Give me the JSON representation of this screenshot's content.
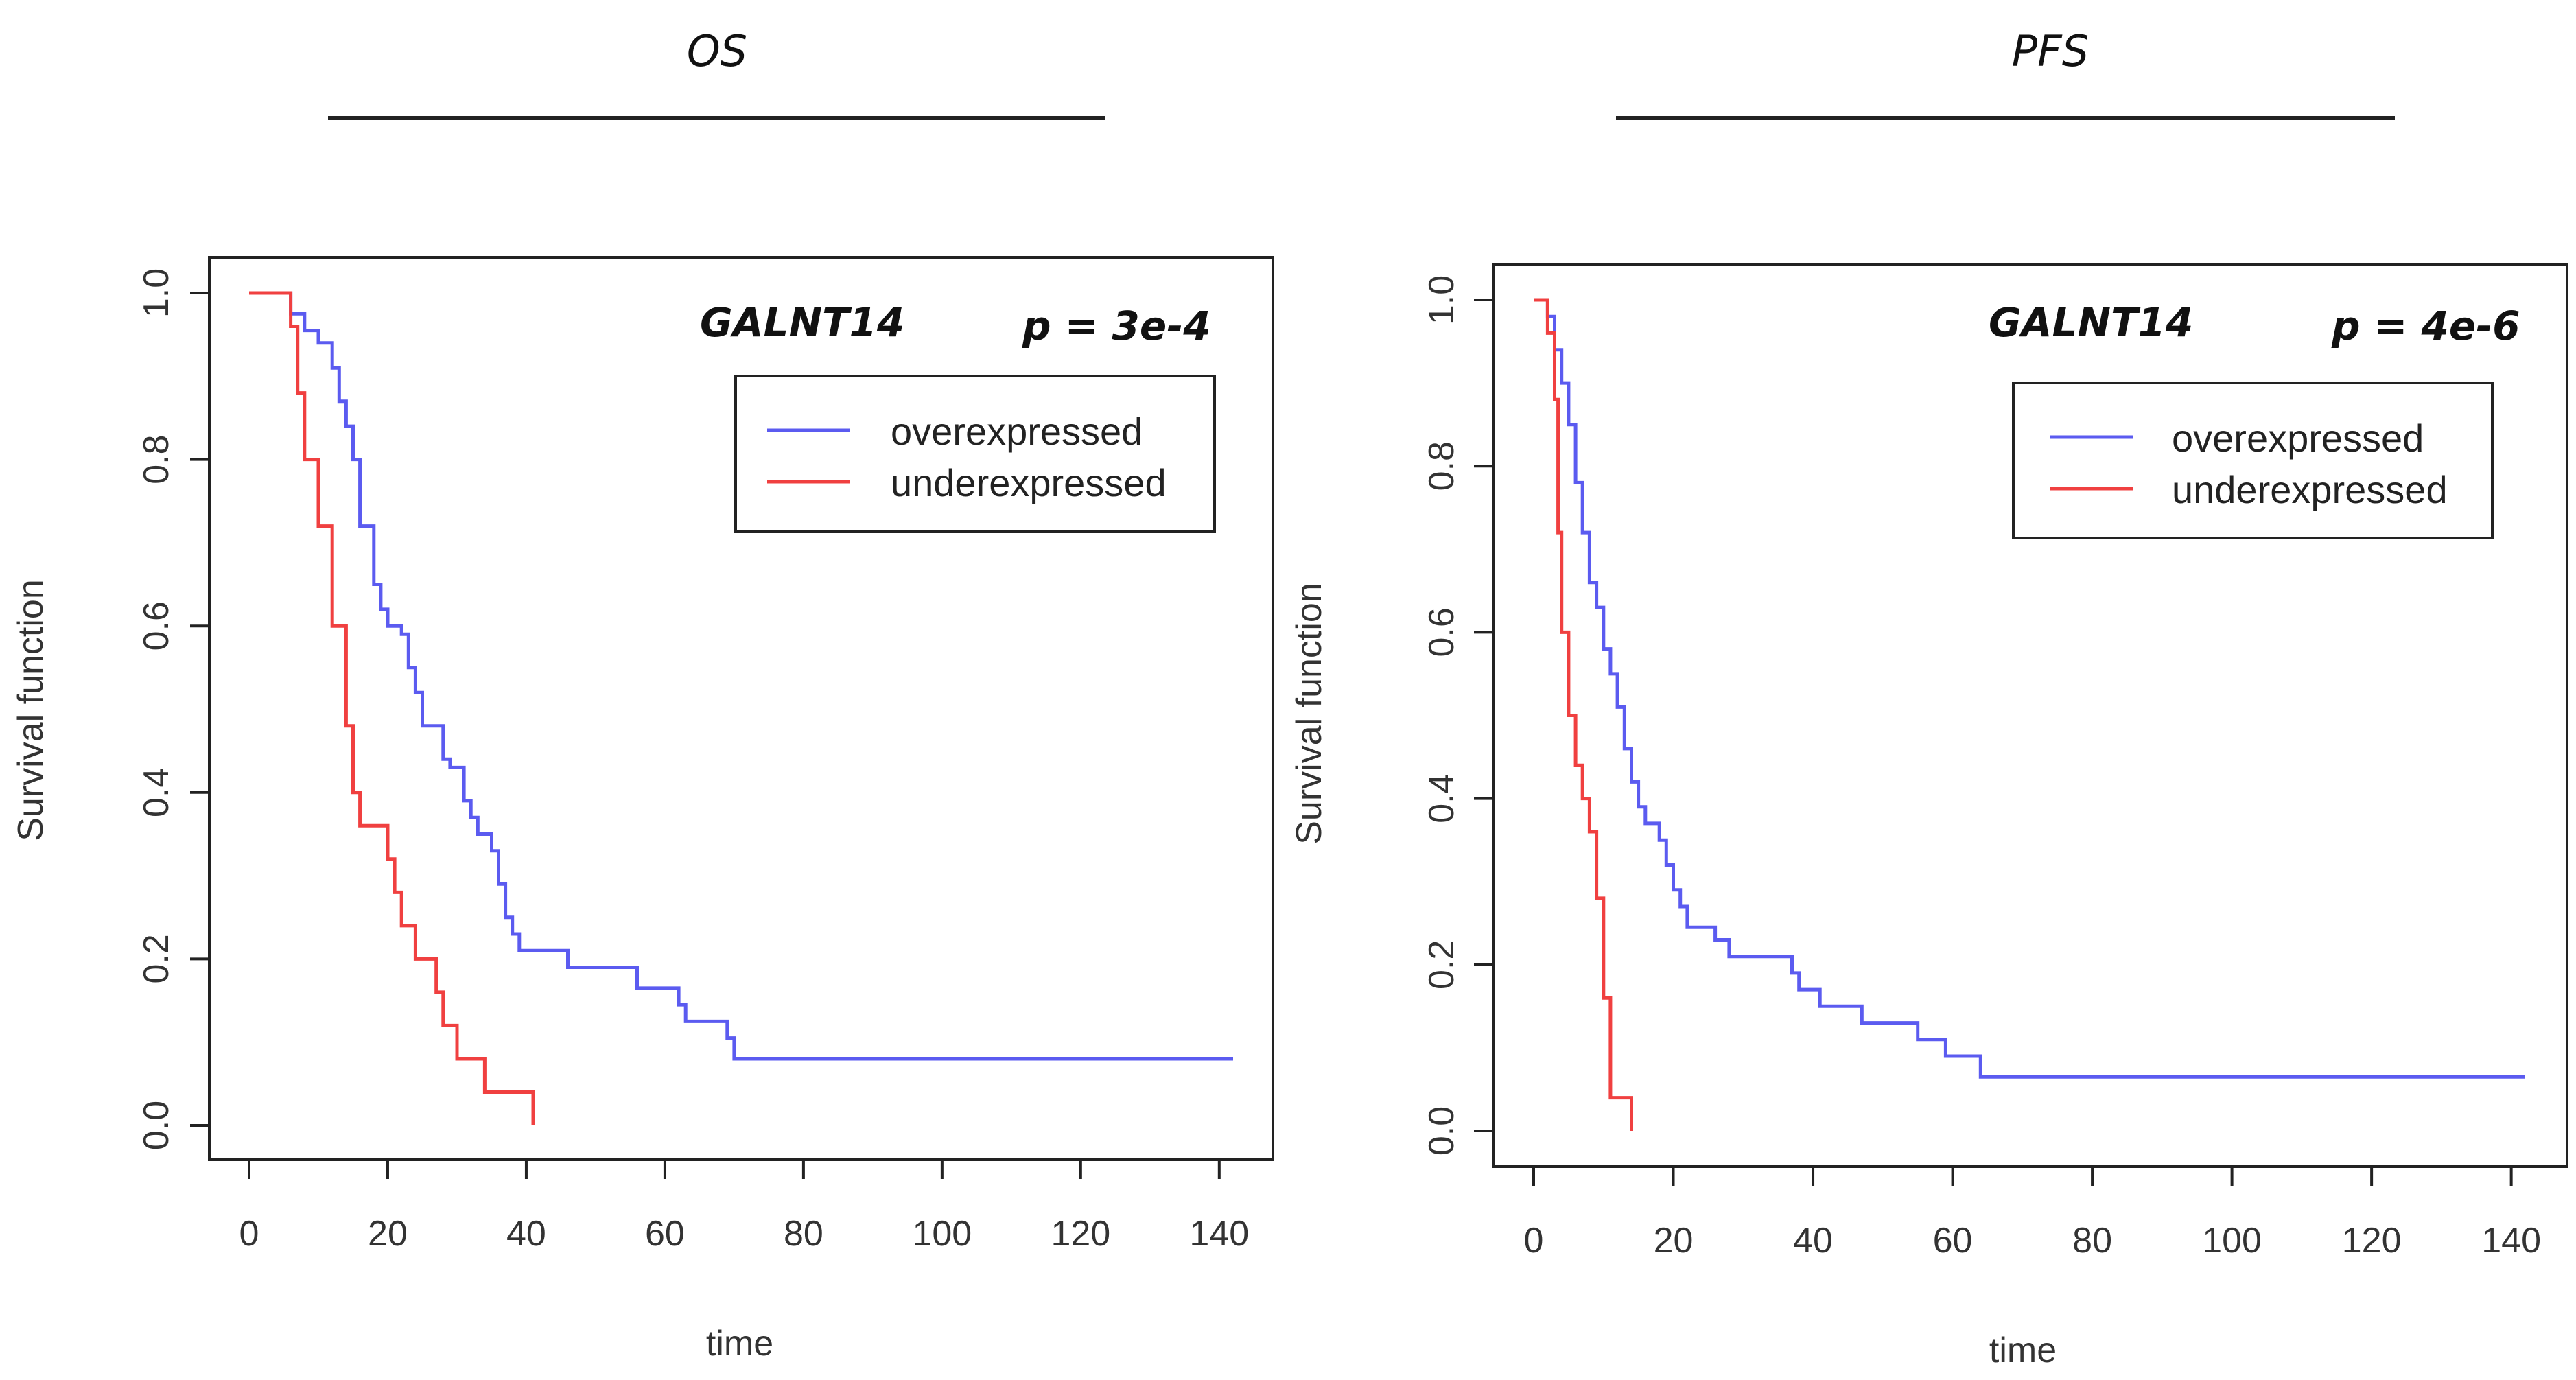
{
  "chart_data": [
    {
      "type": "line",
      "header": "OS",
      "gene": "GALNT14",
      "p_value": "p = 3e-4",
      "xlabel": "time",
      "ylabel": "Survival function",
      "xlim": [
        0,
        142
      ],
      "ylim": [
        0,
        1
      ],
      "xticks": [
        "0",
        "20",
        "40",
        "60",
        "80",
        "100",
        "120",
        "140"
      ],
      "yticks": [
        "0.0",
        "0.2",
        "0.4",
        "0.6",
        "0.8",
        "1.0"
      ],
      "legend": [
        "overexpressed",
        "underexpressed"
      ],
      "series": [
        {
          "name": "overexpressed",
          "color": "#5b5bf0",
          "points": [
            [
              0,
              1.0
            ],
            [
              6,
              1.0
            ],
            [
              6,
              0.975
            ],
            [
              8,
              0.975
            ],
            [
              8,
              0.955
            ],
            [
              10,
              0.955
            ],
            [
              10,
              0.94
            ],
            [
              12,
              0.94
            ],
            [
              12,
              0.91
            ],
            [
              13,
              0.91
            ],
            [
              13,
              0.87
            ],
            [
              14,
              0.87
            ],
            [
              14,
              0.84
            ],
            [
              15,
              0.84
            ],
            [
              15,
              0.8
            ],
            [
              16,
              0.8
            ],
            [
              16,
              0.72
            ],
            [
              18,
              0.72
            ],
            [
              18,
              0.65
            ],
            [
              19,
              0.65
            ],
            [
              19,
              0.62
            ],
            [
              20,
              0.62
            ],
            [
              20,
              0.6
            ],
            [
              22,
              0.6
            ],
            [
              22,
              0.59
            ],
            [
              23,
              0.59
            ],
            [
              23,
              0.55
            ],
            [
              24,
              0.55
            ],
            [
              24,
              0.52
            ],
            [
              25,
              0.52
            ],
            [
              25,
              0.48
            ],
            [
              28,
              0.48
            ],
            [
              28,
              0.44
            ],
            [
              29,
              0.44
            ],
            [
              29,
              0.43
            ],
            [
              31,
              0.43
            ],
            [
              31,
              0.39
            ],
            [
              32,
              0.39
            ],
            [
              32,
              0.37
            ],
            [
              33,
              0.37
            ],
            [
              33,
              0.35
            ],
            [
              35,
              0.35
            ],
            [
              35,
              0.33
            ],
            [
              36,
              0.33
            ],
            [
              36,
              0.29
            ],
            [
              37,
              0.29
            ],
            [
              37,
              0.25
            ],
            [
              38,
              0.25
            ],
            [
              38,
              0.23
            ],
            [
              39,
              0.23
            ],
            [
              39,
              0.21
            ],
            [
              46,
              0.21
            ],
            [
              46,
              0.19
            ],
            [
              56,
              0.19
            ],
            [
              56,
              0.165
            ],
            [
              62,
              0.165
            ],
            [
              62,
              0.145
            ],
            [
              63,
              0.145
            ],
            [
              63,
              0.125
            ],
            [
              69,
              0.125
            ],
            [
              69,
              0.105
            ],
            [
              70,
              0.105
            ],
            [
              70,
              0.08
            ],
            [
              142,
              0.08
            ]
          ]
        },
        {
          "name": "underexpressed",
          "color": "#f04040",
          "points": [
            [
              0,
              1.0
            ],
            [
              6,
              1.0
            ],
            [
              6,
              0.96
            ],
            [
              7,
              0.96
            ],
            [
              7,
              0.88
            ],
            [
              8,
              0.88
            ],
            [
              8,
              0.8
            ],
            [
              10,
              0.8
            ],
            [
              10,
              0.72
            ],
            [
              12,
              0.72
            ],
            [
              12,
              0.6
            ],
            [
              14,
              0.6
            ],
            [
              14,
              0.48
            ],
            [
              15,
              0.48
            ],
            [
              15,
              0.4
            ],
            [
              16,
              0.4
            ],
            [
              16,
              0.36
            ],
            [
              20,
              0.36
            ],
            [
              20,
              0.32
            ],
            [
              21,
              0.32
            ],
            [
              21,
              0.28
            ],
            [
              22,
              0.28
            ],
            [
              22,
              0.24
            ],
            [
              24,
              0.24
            ],
            [
              24,
              0.2
            ],
            [
              27,
              0.2
            ],
            [
              27,
              0.16
            ],
            [
              28,
              0.16
            ],
            [
              28,
              0.12
            ],
            [
              30,
              0.12
            ],
            [
              30,
              0.08
            ],
            [
              34,
              0.08
            ],
            [
              34,
              0.04
            ],
            [
              41,
              0.04
            ],
            [
              41,
              0.0
            ]
          ]
        }
      ]
    },
    {
      "type": "line",
      "header": "PFS",
      "gene": "GALNT14",
      "p_value": "p = 4e-6",
      "xlabel": "time",
      "ylabel": "Survival function",
      "xlim": [
        0,
        142
      ],
      "ylim": [
        0,
        1
      ],
      "xticks": [
        "0",
        "20",
        "40",
        "60",
        "80",
        "100",
        "120",
        "140"
      ],
      "yticks": [
        "0.0",
        "0.2",
        "0.4",
        "0.6",
        "0.8",
        "1.0"
      ],
      "legend": [
        "overexpressed",
        "underexpressed"
      ],
      "series": [
        {
          "name": "overexpressed",
          "color": "#5b5bf0",
          "points": [
            [
              0,
              1.0
            ],
            [
              2,
              1.0
            ],
            [
              2,
              0.98
            ],
            [
              3,
              0.98
            ],
            [
              3,
              0.94
            ],
            [
              4,
              0.94
            ],
            [
              4,
              0.9
            ],
            [
              5,
              0.9
            ],
            [
              5,
              0.85
            ],
            [
              6,
              0.85
            ],
            [
              6,
              0.78
            ],
            [
              7,
              0.78
            ],
            [
              7,
              0.72
            ],
            [
              8,
              0.72
            ],
            [
              8,
              0.66
            ],
            [
              9,
              0.66
            ],
            [
              9,
              0.63
            ],
            [
              10,
              0.63
            ],
            [
              10,
              0.58
            ],
            [
              11,
              0.58
            ],
            [
              11,
              0.55
            ],
            [
              12,
              0.55
            ],
            [
              12,
              0.51
            ],
            [
              13,
              0.51
            ],
            [
              13,
              0.46
            ],
            [
              14,
              0.46
            ],
            [
              14,
              0.42
            ],
            [
              15,
              0.42
            ],
            [
              15,
              0.39
            ],
            [
              16,
              0.39
            ],
            [
              16,
              0.37
            ],
            [
              18,
              0.37
            ],
            [
              18,
              0.35
            ],
            [
              19,
              0.35
            ],
            [
              19,
              0.32
            ],
            [
              20,
              0.32
            ],
            [
              20,
              0.29
            ],
            [
              21,
              0.29
            ],
            [
              21,
              0.27
            ],
            [
              22,
              0.27
            ],
            [
              22,
              0.245
            ],
            [
              26,
              0.245
            ],
            [
              26,
              0.23
            ],
            [
              28,
              0.23
            ],
            [
              28,
              0.21
            ],
            [
              37,
              0.21
            ],
            [
              37,
              0.19
            ],
            [
              38,
              0.19
            ],
            [
              38,
              0.17
            ],
            [
              41,
              0.17
            ],
            [
              41,
              0.15
            ],
            [
              47,
              0.15
            ],
            [
              47,
              0.13
            ],
            [
              55,
              0.13
            ],
            [
              55,
              0.11
            ],
            [
              59,
              0.11
            ],
            [
              59,
              0.09
            ],
            [
              64,
              0.09
            ],
            [
              64,
              0.065
            ],
            [
              142,
              0.065
            ]
          ]
        },
        {
          "name": "underexpressed",
          "color": "#f04040",
          "points": [
            [
              0,
              1.0
            ],
            [
              2,
              1.0
            ],
            [
              2,
              0.96
            ],
            [
              3,
              0.96
            ],
            [
              3,
              0.88
            ],
            [
              3.5,
              0.88
            ],
            [
              3.5,
              0.72
            ],
            [
              4,
              0.72
            ],
            [
              4,
              0.6
            ],
            [
              5,
              0.6
            ],
            [
              5,
              0.5
            ],
            [
              6,
              0.5
            ],
            [
              6,
              0.44
            ],
            [
              7,
              0.44
            ],
            [
              7,
              0.4
            ],
            [
              8,
              0.4
            ],
            [
              8,
              0.36
            ],
            [
              9,
              0.36
            ],
            [
              9,
              0.28
            ],
            [
              10,
              0.28
            ],
            [
              10,
              0.16
            ],
            [
              11,
              0.16
            ],
            [
              11,
              0.04
            ],
            [
              14,
              0.04
            ],
            [
              14,
              0.0
            ]
          ]
        }
      ]
    }
  ]
}
